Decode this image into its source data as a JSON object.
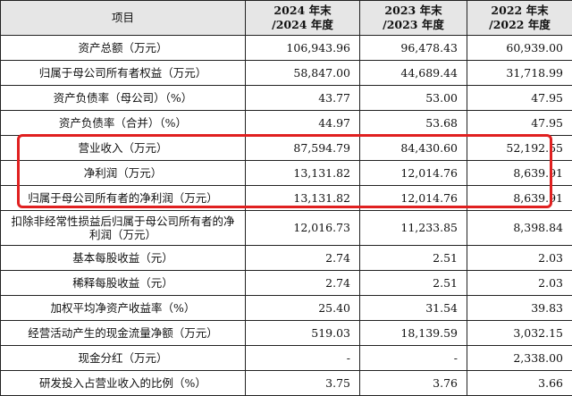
{
  "header": {
    "item": "项目",
    "cols": [
      [
        "2024 年末",
        "/2024 年度"
      ],
      [
        "2023 年末",
        "/2023 年度"
      ],
      [
        "2022 年末",
        "/2022 年度"
      ]
    ]
  },
  "rows": [
    {
      "name": "资产总额（万元）",
      "values": [
        "106,943.96",
        "96,478.43",
        "60,939.00"
      ]
    },
    {
      "name": "归属于母公司所有者权益（万元）",
      "values": [
        "58,847.00",
        "44,689.44",
        "31,718.99"
      ]
    },
    {
      "name": "资产负债率（母公司）（%）",
      "values": [
        "43.77",
        "53.00",
        "47.95"
      ]
    },
    {
      "name": "资产负债率（合并）（%）",
      "values": [
        "44.97",
        "53.68",
        "47.95"
      ]
    },
    {
      "name": "营业收入（万元）",
      "values": [
        "87,594.79",
        "84,430.60",
        "52,192.55"
      ]
    },
    {
      "name": "净利润（万元）",
      "values": [
        "13,131.82",
        "12,014.76",
        "8,639.91"
      ]
    },
    {
      "name": "归属于母公司所有者的净利润（万元）",
      "values": [
        "13,131.82",
        "12,014.76",
        "8,639.91"
      ]
    },
    {
      "name": "扣除非经常性损益后归属于母公司所有者的净利润（万元）",
      "values": [
        "12,016.73",
        "11,233.85",
        "8,398.84"
      ]
    },
    {
      "name": "基本每股收益（元）",
      "values": [
        "2.74",
        "2.51",
        "2.03"
      ]
    },
    {
      "name": "稀释每股收益（元）",
      "values": [
        "2.74",
        "2.51",
        "2.03"
      ]
    },
    {
      "name": "加权平均净资产收益率（%）",
      "values": [
        "25.40",
        "31.54",
        "39.83"
      ]
    },
    {
      "name": "经营活动产生的现金流量净额（万元）",
      "values": [
        "519.03",
        "18,139.59",
        "3,032.15"
      ]
    },
    {
      "name": "现金分红（万元）",
      "values": [
        "-",
        "-",
        "2,338.00"
      ]
    },
    {
      "name": "研发投入占营业收入的比例（%）",
      "values": [
        "3.75",
        "3.76",
        "3.66"
      ]
    }
  ]
}
